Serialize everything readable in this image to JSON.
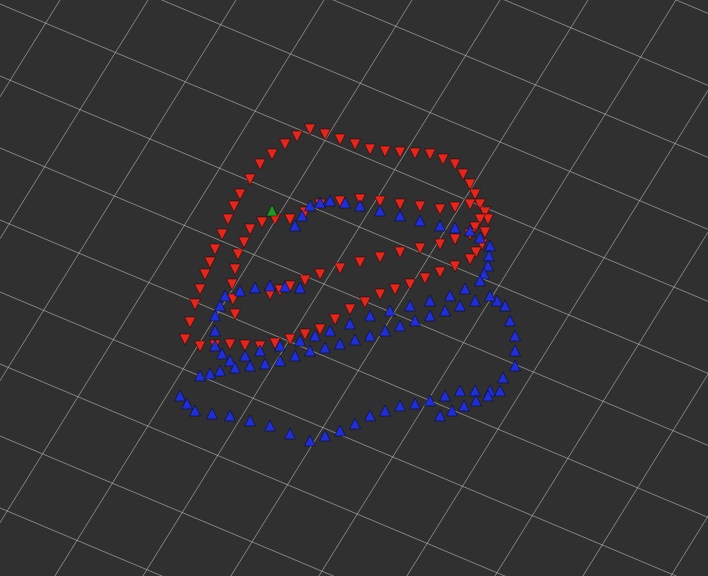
{
  "chart_data": {
    "type": "scatter",
    "xlim": [
      0,
      708
    ],
    "ylim": [
      576,
      0
    ],
    "tick_labels": false,
    "grid": true,
    "series": [
      {
        "color": "#e8251b",
        "marker": "arrow-down",
        "x": [
          185,
          190,
          195,
          200,
          205,
          210,
          215,
          222,
          228,
          234,
          240,
          250,
          260,
          272,
          285,
          297,
          310,
          325,
          340,
          355,
          370,
          385,
          400,
          415,
          430,
          443,
          455,
          463,
          470,
          475,
          480,
          485,
          488,
          485,
          482,
          476,
          470,
          455,
          440,
          425,
          410,
          395,
          380,
          365,
          350,
          335,
          320,
          305,
          290,
          275,
          260,
          245,
          230,
          215,
          200
        ],
        "y": [
          345,
          328,
          310,
          295,
          280,
          268,
          255,
          240,
          225,
          212,
          200,
          185,
          170,
          160,
          150,
          142,
          135,
          140,
          145,
          150,
          155,
          157,
          158,
          159,
          160,
          165,
          170,
          180,
          190,
          200,
          210,
          218,
          225,
          238,
          250,
          258,
          265,
          272,
          278,
          284,
          290,
          295,
          300,
          308,
          315,
          325,
          335,
          340,
          345,
          349,
          352,
          351,
          350,
          351,
          352
        ]
      },
      {
        "color": "#e8251b",
        "marker": "arrow-down",
        "x": [
          235,
          233,
          232,
          235,
          238,
          244,
          250,
          262,
          275,
          290,
          305,
          320,
          340,
          360,
          380,
          400,
          420,
          440,
          455,
          470,
          480,
          475,
          470,
          455,
          440,
          420,
          400,
          380,
          360,
          340,
          320,
          305,
          290,
          280,
          270
        ],
        "y": [
          320,
          305,
          290,
          275,
          260,
          248,
          235,
          228,
          225,
          225,
          218,
          210,
          207,
          205,
          207,
          210,
          212,
          215,
          213,
          210,
          225,
          233,
          240,
          245,
          250,
          254,
          258,
          263,
          268,
          274,
          280,
          286,
          292,
          296,
          300
        ]
      },
      {
        "color": "#1f2ed8",
        "marker": "arrow-up",
        "x": [
          295,
          302,
          310,
          320,
          330,
          345,
          360,
          380,
          400,
          420,
          440,
          455,
          470,
          480,
          490,
          489,
          488,
          484,
          480,
          465,
          450,
          430,
          410,
          390,
          370,
          350,
          330,
          315,
          300,
          280,
          260,
          245,
          230,
          222,
          215,
          215,
          215,
          220,
          225,
          240,
          255,
          270,
          285,
          300
        ],
        "y": [
          220,
          210,
          200,
          197,
          195,
          197,
          200,
          205,
          210,
          215,
          220,
          222,
          225,
          232,
          240,
          250,
          260,
          268,
          275,
          283,
          290,
          295,
          300,
          305,
          310,
          318,
          325,
          330,
          335,
          340,
          345,
          350,
          355,
          348,
          340,
          325,
          310,
          300,
          290,
          285,
          282,
          280,
          281,
          282
        ]
      },
      {
        "color": "#1f2ed8",
        "marker": "arrow-up",
        "x": [
          180,
          187,
          195,
          212,
          230,
          250,
          270,
          290,
          310,
          325,
          340,
          355,
          370,
          385,
          400,
          415,
          430,
          445,
          460,
          475,
          490,
          503,
          515,
          515,
          515,
          510,
          505,
          497,
          490,
          475,
          460,
          445,
          430,
          415,
          400,
          385,
          370,
          355,
          340,
          325,
          310,
          295,
          280,
          265,
          250,
          235,
          220,
          210,
          200
        ],
        "y": [
          390,
          398,
          405,
          408,
          410,
          415,
          420,
          428,
          435,
          430,
          425,
          418,
          410,
          405,
          400,
          398,
          395,
          390,
          385,
          385,
          385,
          372,
          360,
          345,
          330,
          315,
          300,
          295,
          290,
          295,
          300,
          305,
          310,
          315,
          320,
          325,
          330,
          334,
          338,
          342,
          345,
          350,
          355,
          358,
          360,
          362,
          365,
          368,
          370
        ]
      },
      {
        "color": "#1f2ed8",
        "marker": "arrow-up",
        "x": [
          440,
          452,
          464,
          476,
          488,
          500
        ],
        "y": [
          410,
          405,
          400,
          395,
          390,
          385
        ]
      },
      {
        "color": "#1c9a22",
        "marker": "arrow-up",
        "x": [
          272
        ],
        "y": [
          205
        ]
      }
    ]
  }
}
